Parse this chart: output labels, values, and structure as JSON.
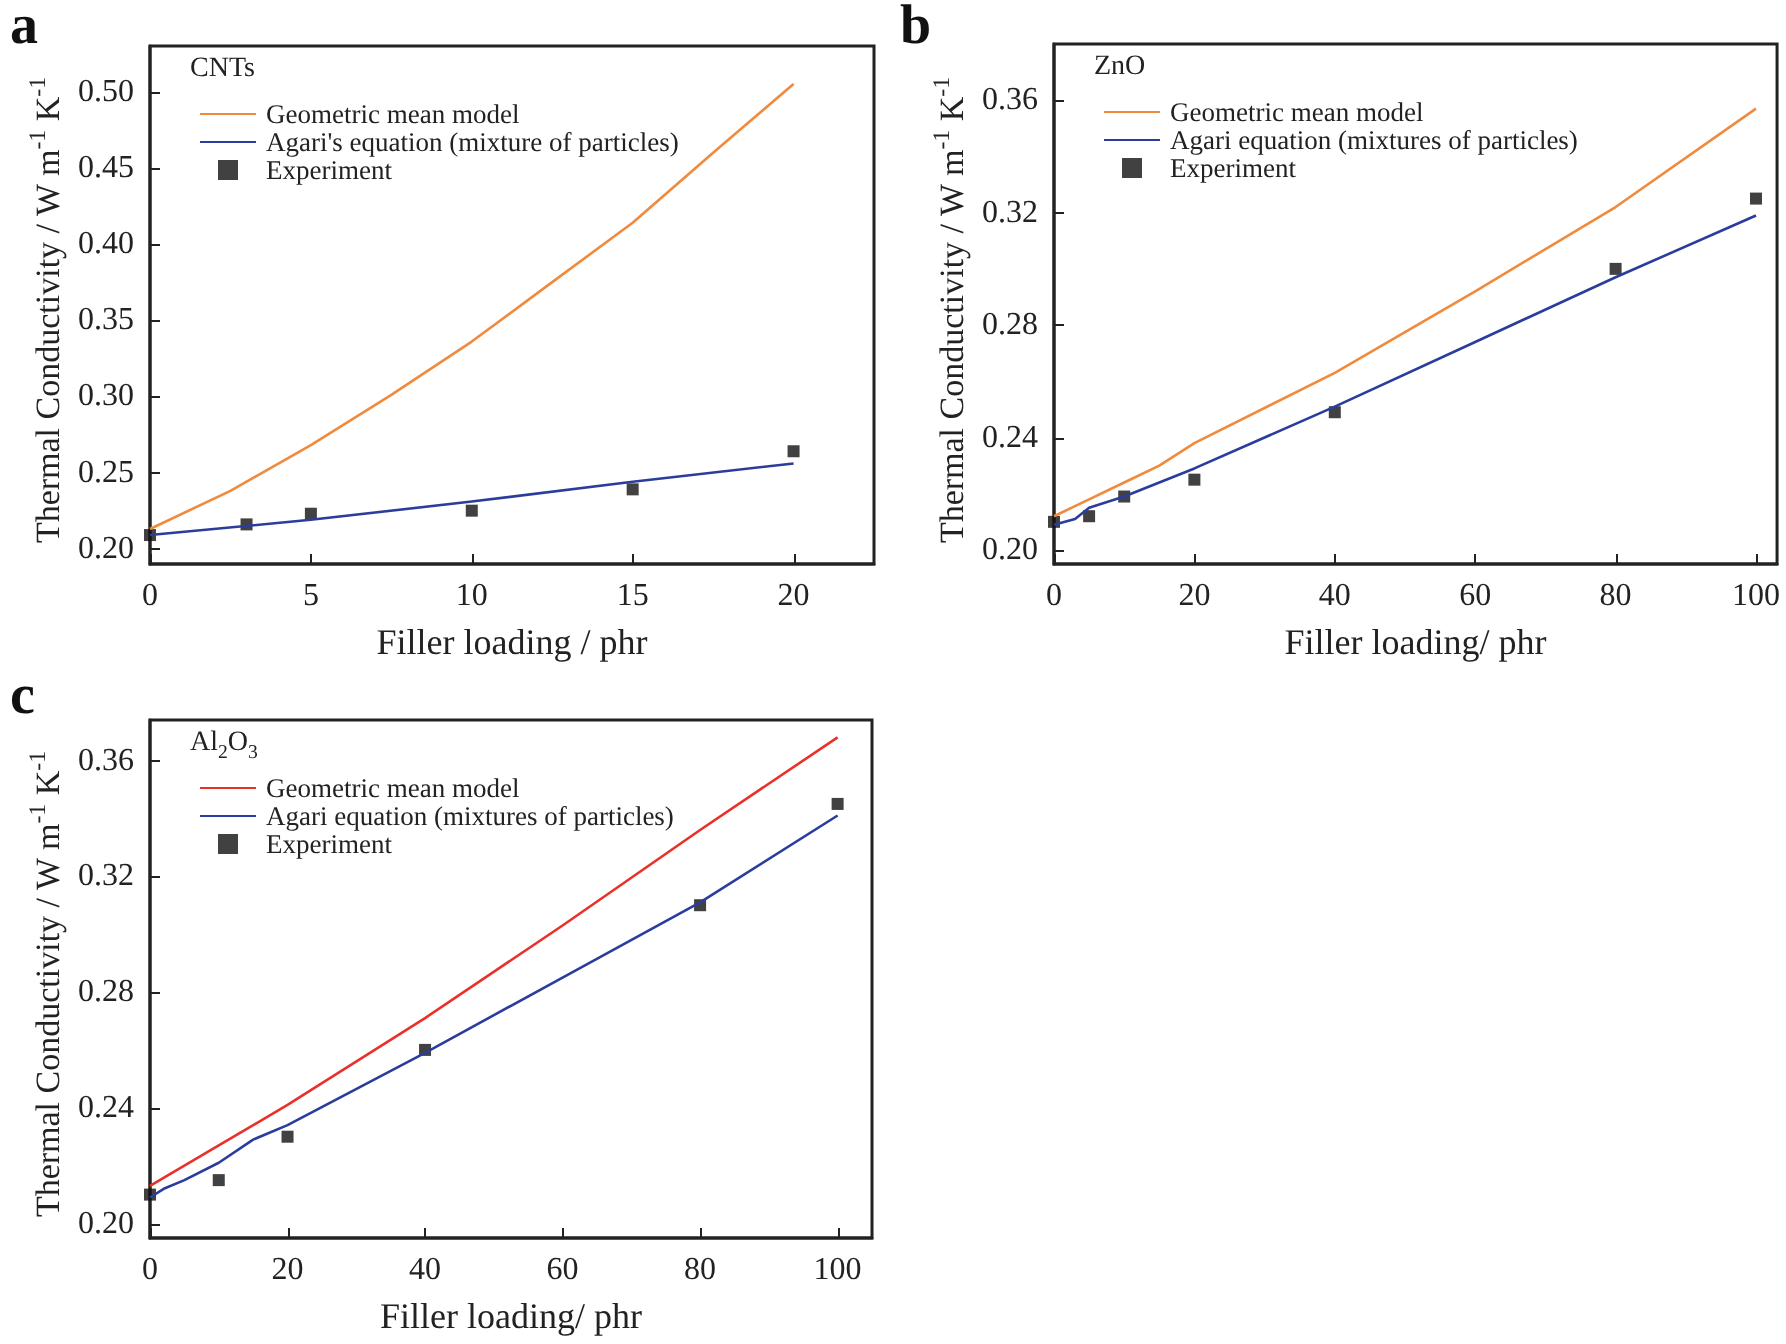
{
  "chart_data": [
    {
      "type": "line",
      "title": "a",
      "legend_title": "CNTs",
      "xlabel": "Filler loading / phr",
      "ylabel": "Thermal Conductivity / W m$^{-1}$ K$^{-1}$",
      "xlim": [
        0,
        22.5
      ],
      "xticks": [
        0,
        5,
        10,
        15,
        20
      ],
      "ylim": [
        0.19,
        0.53
      ],
      "yticks": [
        {
          "value": 0.2,
          "label": "0.20"
        },
        {
          "value": 0.25,
          "label": "0.25"
        },
        {
          "value": 0.3,
          "label": "0.30"
        },
        {
          "value": 0.35,
          "label": "0.35"
        },
        {
          "value": 0.4,
          "label": "0.40"
        },
        {
          "value": 0.45,
          "label": "0.45"
        },
        {
          "value": 0.5,
          "label": "0.50"
        }
      ],
      "grid": false,
      "legend": "top left",
      "series": [
        {
          "name": "Geometric mean model",
          "marker": "none",
          "color": "#f08a3c",
          "x": [
            0,
            2.5,
            5,
            7.5,
            10,
            12.5,
            15,
            17.5,
            20
          ],
          "values": [
            0.213,
            0.238,
            0.268,
            0.301,
            0.336,
            0.375,
            0.414,
            0.46,
            0.505
          ]
        },
        {
          "name": "Agari's equation (mixture of particles)",
          "marker": "none",
          "color": "#2b3d9c",
          "x": [
            0,
            5,
            10,
            15,
            20
          ],
          "values": [
            0.209,
            0.219,
            0.231,
            0.244,
            0.256
          ]
        },
        {
          "name": "Experiment",
          "type": "scatter",
          "marker": "square",
          "color": "#111111",
          "x": [
            0,
            3,
            5,
            10,
            15,
            20
          ],
          "values": [
            0.209,
            0.216,
            0.223,
            0.225,
            0.239,
            0.264
          ]
        }
      ]
    },
    {
      "type": "line",
      "title": "b",
      "legend_title": "ZnO",
      "xlabel": "Filler loading/ phr",
      "ylabel": "Thermal Conductivity / W m$^{-1}$ K$^{-1}$",
      "xlim": [
        0,
        103
      ],
      "xticks": [
        0,
        20,
        40,
        60,
        80,
        100
      ],
      "ylim": [
        0.195,
        0.38
      ],
      "yticks": [
        {
          "value": 0.2,
          "label": "0.20"
        },
        0.24,
        0.28,
        0.32,
        0.36
      ],
      "grid": false,
      "legend": "top left",
      "series": [
        {
          "name": "Geometric mean model",
          "marker": "none",
          "color": "#f08a3c",
          "x": [
            0,
            5,
            10,
            15,
            20,
            40,
            60,
            80,
            100
          ],
          "values": [
            0.212,
            0.218,
            0.224,
            0.23,
            0.238,
            0.263,
            0.292,
            0.322,
            0.357
          ]
        },
        {
          "name": "Agari equation (mixtures of particles)",
          "marker": "none",
          "color": "#2b3d9c",
          "x": [
            0,
            3,
            5,
            10,
            20,
            40,
            60,
            80,
            100
          ],
          "values": [
            0.209,
            0.211,
            0.215,
            0.219,
            0.229,
            0.251,
            0.274,
            0.297,
            0.319
          ]
        },
        {
          "name": "Experiment",
          "type": "scatter",
          "marker": "square",
          "color": "#111111",
          "x": [
            0,
            5,
            10,
            20,
            40,
            80,
            100
          ],
          "values": [
            0.21,
            0.212,
            0.219,
            0.225,
            0.249,
            0.3,
            0.325
          ]
        }
      ]
    },
    {
      "type": "line",
      "title": "c",
      "legend_title": "Al$_{2}$O$_{3}$",
      "xlabel": "Filler loading/ phr",
      "ylabel": "Thermal Conductivity / W m$^{-1}$ K$^{-1}$",
      "xlim": [
        0,
        105
      ],
      "xticks": [
        0,
        20,
        40,
        60,
        80,
        100
      ],
      "ylim": [
        0.195,
        0.374
      ],
      "yticks": [
        {
          "value": 0.2,
          "label": "0.20"
        },
        0.24,
        0.28,
        0.32,
        0.36
      ],
      "grid": false,
      "legend": "top left",
      "series": [
        {
          "name": "Geometric mean model",
          "marker": "none",
          "color": "#e8312a",
          "x": [
            0,
            10,
            20,
            40,
            60,
            80,
            100
          ],
          "values": [
            0.213,
            0.227,
            0.241,
            0.271,
            0.303,
            0.336,
            0.368
          ]
        },
        {
          "name": "Agari equation (mixtures of particles)",
          "marker": "none",
          "color": "#2b3d9c",
          "x": [
            0,
            2,
            5,
            10,
            15,
            20,
            40,
            60,
            80,
            100
          ],
          "values": [
            0.209,
            0.212,
            0.215,
            0.221,
            0.229,
            0.234,
            0.259,
            0.285,
            0.311,
            0.341
          ]
        },
        {
          "name": "Experiment",
          "type": "scatter",
          "marker": "square",
          "color": "#111111",
          "x": [
            0,
            10,
            20,
            40,
            80,
            100
          ],
          "values": [
            0.21,
            0.215,
            0.23,
            0.26,
            0.31,
            0.345
          ]
        }
      ]
    }
  ]
}
